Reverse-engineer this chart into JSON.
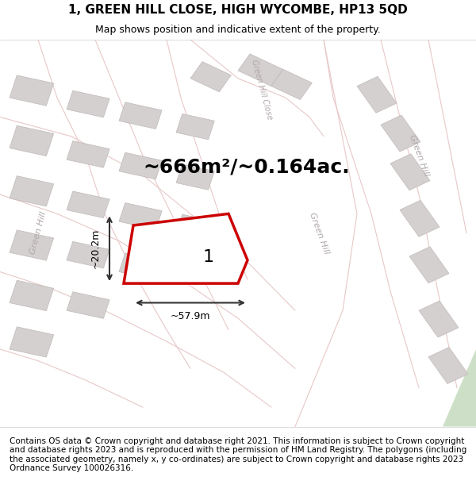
{
  "title_line1": "1, GREEN HILL CLOSE, HIGH WYCOMBE, HP13 5QD",
  "title_line2": "Map shows position and indicative extent of the property.",
  "footer_text": "Contains OS data © Crown copyright and database right 2021. This information is subject to Crown copyright and database rights 2023 and is reproduced with the permission of HM Land Registry. The polygons (including the associated geometry, namely x, y co-ordinates) are subject to Crown copyright and database rights 2023 Ordnance Survey 100026316.",
  "area_text": "~666m²/~0.164ac.",
  "width_label": "~57.9m",
  "height_label": "~20.2m",
  "property_number": "1",
  "bg_color": "#f5f0f0",
  "map_bg": "#f0ebe8",
  "road_color": "#e8c8c8",
  "building_color": "#d4d0d0",
  "building_edge": "#c0b8b8",
  "plot_fill": "#ffffff",
  "plot_edge": "#cc0000",
  "plot_linewidth": 2.5,
  "green_strip_color": "#c8dfc8",
  "road_text_color": "#b0a8a8",
  "dim_color": "#333333",
  "title_fontsize": 11,
  "subtitle_fontsize": 9,
  "footer_fontsize": 7.5,
  "area_fontsize": 18,
  "label_fontsize": 9,
  "number_fontsize": 16,
  "road_label_fontsize": 8
}
